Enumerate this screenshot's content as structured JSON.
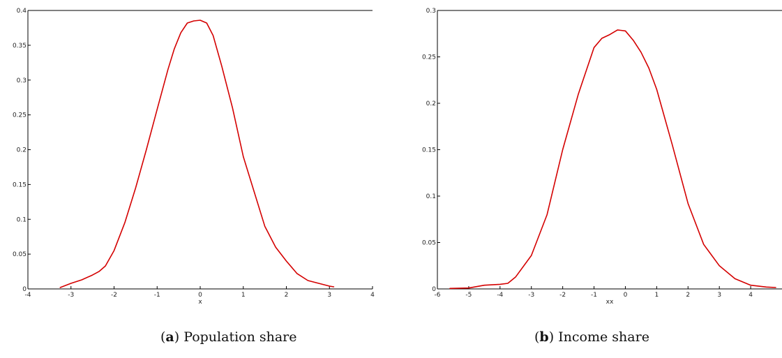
{
  "chart_data": [
    {
      "type": "line",
      "title": "",
      "xlabel": "x",
      "ylabel": "",
      "xlim": [
        -4,
        4
      ],
      "ylim": [
        0,
        0.4
      ],
      "xticks": [
        -4,
        -3,
        -2,
        -1,
        0,
        1,
        2,
        3,
        4
      ],
      "yticks": [
        0,
        0.05,
        0.1,
        0.15,
        0.2,
        0.25,
        0.3,
        0.35,
        0.4
      ],
      "xtick_labels": [
        "-4",
        "-3",
        "-2",
        "-1",
        "0",
        "1",
        "2",
        "3",
        "4"
      ],
      "ytick_labels": [
        "0",
        "0.05",
        "0.1",
        "0.15",
        "0.2",
        "0.25",
        "0.3",
        "0.35",
        "0.4"
      ],
      "grid": false,
      "series": [
        {
          "color": "#d40000",
          "x": [
            -3.25,
            -3.0,
            -2.75,
            -2.5,
            -2.35,
            -2.2,
            -2.0,
            -1.75,
            -1.5,
            -1.25,
            -1.0,
            -0.75,
            -0.6,
            -0.45,
            -0.3,
            -0.15,
            0.0,
            0.15,
            0.3,
            0.5,
            0.75,
            1.0,
            1.25,
            1.5,
            1.75,
            2.0,
            2.25,
            2.5,
            2.75,
            3.0,
            3.1
          ],
          "y": [
            0.002,
            0.008,
            0.013,
            0.02,
            0.025,
            0.033,
            0.055,
            0.095,
            0.145,
            0.2,
            0.258,
            0.315,
            0.345,
            0.368,
            0.382,
            0.385,
            0.386,
            0.382,
            0.364,
            0.32,
            0.26,
            0.19,
            0.14,
            0.09,
            0.06,
            0.04,
            0.022,
            0.012,
            0.008,
            0.004,
            0.003
          ]
        }
      ]
    },
    {
      "type": "line",
      "title": "",
      "xlabel": "xx",
      "ylabel": "",
      "xlim": [
        -6,
        5
      ],
      "ylim": [
        0,
        0.3
      ],
      "xticks": [
        -6,
        -5,
        -4,
        -3,
        -2,
        -1,
        0,
        1,
        2,
        3,
        4
      ],
      "yticks": [
        0,
        0.05,
        0.1,
        0.15,
        0.2,
        0.25,
        0.3
      ],
      "xtick_labels": [
        "-6",
        "-5",
        "-4",
        "-3",
        "-2",
        "-1",
        "0",
        "1",
        "2",
        "3",
        "4"
      ],
      "ytick_labels": [
        "0",
        "0.05",
        "0.1",
        "0.15",
        "0.2",
        "0.25",
        "0.3"
      ],
      "grid": false,
      "series": [
        {
          "color": "#d40000",
          "x": [
            -5.6,
            -5.0,
            -4.5,
            -4.0,
            -3.75,
            -3.5,
            -3.0,
            -2.5,
            -2.0,
            -1.5,
            -1.0,
            -0.75,
            -0.5,
            -0.25,
            0.0,
            0.25,
            0.5,
            0.75,
            1.0,
            1.5,
            2.0,
            2.5,
            3.0,
            3.5,
            4.0,
            4.5,
            4.8
          ],
          "y": [
            0.0005,
            0.001,
            0.004,
            0.005,
            0.006,
            0.013,
            0.036,
            0.08,
            0.15,
            0.21,
            0.26,
            0.27,
            0.274,
            0.279,
            0.278,
            0.268,
            0.255,
            0.238,
            0.215,
            0.155,
            0.092,
            0.048,
            0.025,
            0.011,
            0.004,
            0.002,
            0.0015
          ]
        }
      ]
    }
  ],
  "captions": [
    {
      "letter": "a",
      "text": "Population share"
    },
    {
      "letter": "b",
      "text": "Income share"
    }
  ]
}
